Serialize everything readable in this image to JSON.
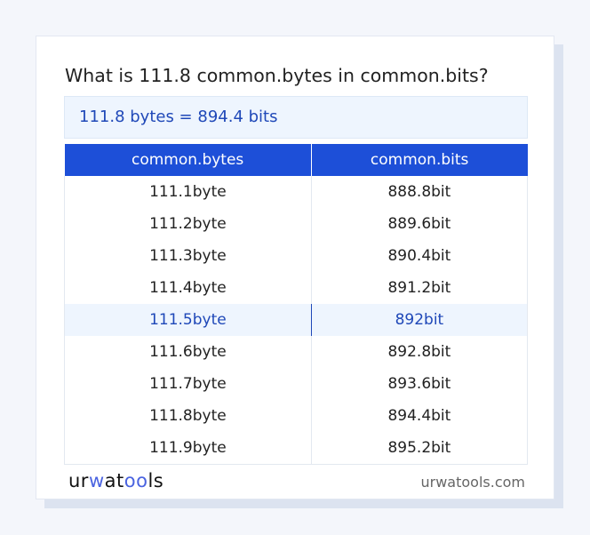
{
  "title": "What is 111.8 common.bytes in common.bits?",
  "result": "111.8 bytes = 894.4 bits",
  "table": {
    "headers": [
      "common.bytes",
      "common.bits"
    ],
    "rows": [
      [
        "111.1byte",
        "888.8bit"
      ],
      [
        "111.2byte",
        "889.6bit"
      ],
      [
        "111.3byte",
        "890.4bit"
      ],
      [
        "111.4byte",
        "891.2bit"
      ],
      [
        "111.5byte",
        "892bit"
      ],
      [
        "111.6byte",
        "892.8bit"
      ],
      [
        "111.7byte",
        "893.6bit"
      ],
      [
        "111.8byte",
        "894.4bit"
      ],
      [
        "111.9byte",
        "895.2bit"
      ]
    ],
    "highlighted_row": 4
  },
  "footer": {
    "logo": "urwatools",
    "site": "urwatools.com"
  },
  "colors": {
    "accent": "#1d4fd8",
    "highlight_bg": "#eef5fe",
    "highlight_text": "#1f48b8"
  }
}
